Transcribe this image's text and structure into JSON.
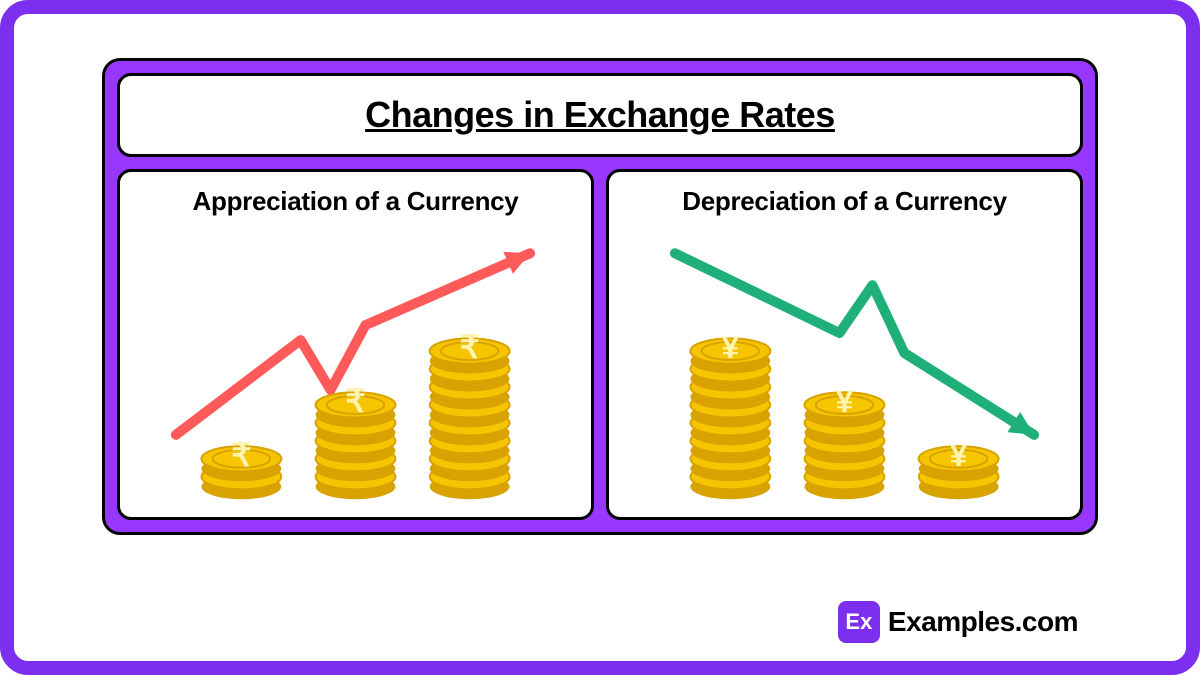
{
  "title": "Changes in Exchange Rates",
  "panels": {
    "left": {
      "title": "Appreciation of a Currency",
      "arrow_color": "#ff5a5a",
      "coin_symbol": "₹",
      "coin_fill": "#f6c500",
      "coin_stroke": "#d8a200",
      "coin_highlight": "#fff3b0",
      "stacks": [
        2,
        5,
        8
      ],
      "direction": "up"
    },
    "right": {
      "title": "Depreciation of a Currency",
      "arrow_color": "#1fb07a",
      "coin_symbol": "¥",
      "coin_fill": "#f6c500",
      "coin_stroke": "#d8a200",
      "coin_highlight": "#fff3b0",
      "stacks": [
        8,
        5,
        2
      ],
      "direction": "down"
    }
  },
  "footer": {
    "badge_text": "Ex",
    "site_text": "Examples.com",
    "badge_bg": "#7c2fee"
  },
  "colors": {
    "frame_border": "#7c2fee",
    "inner_bg": "#9838ff",
    "box_border": "#000000",
    "box_bg": "#ffffff"
  }
}
